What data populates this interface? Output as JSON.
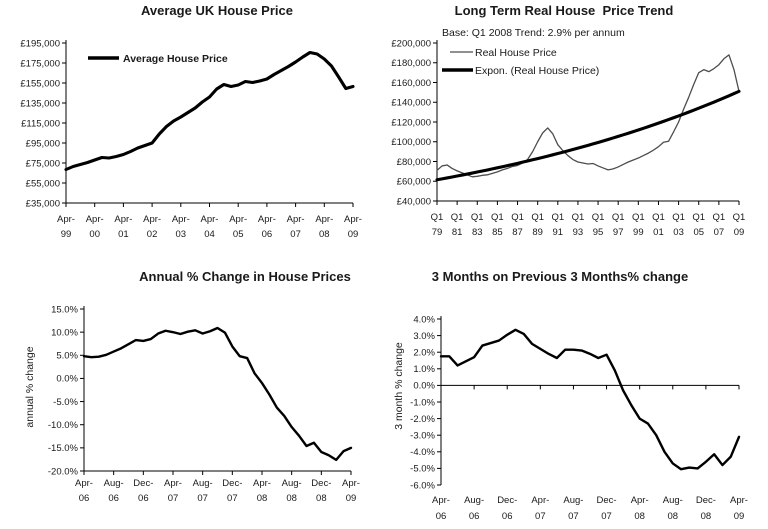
{
  "page": {
    "background": "#ffffff",
    "text_color": "#1a1a1a",
    "axis_color": "#000000"
  },
  "chart_data": [
    {
      "id": "average-uk-house-price",
      "type": "line",
      "title": "Average UK House Price",
      "y_min": 35000,
      "y_max": 195000,
      "y_tick_labels": [
        "£195,000",
        "£175,000",
        "£155,000",
        "£135,000",
        "£115,000",
        "£95,000",
        "£75,000",
        "£55,000",
        "£35,000"
      ],
      "x_tick_labels": [
        [
          "Apr-",
          "99"
        ],
        [
          "Apr-",
          "00"
        ],
        [
          "Apr-",
          "01"
        ],
        [
          "Apr-",
          "02"
        ],
        [
          "Apr-",
          "03"
        ],
        [
          "Apr-",
          "04"
        ],
        [
          "Apr-",
          "05"
        ],
        [
          "Apr-",
          "06"
        ],
        [
          "Apr-",
          "07"
        ],
        [
          "Apr-",
          "08"
        ],
        [
          "Apr-",
          "09"
        ]
      ],
      "legend": [
        {
          "label": "Average House Price",
          "style": "thick",
          "color": "#000000"
        }
      ],
      "series": [
        {
          "name": "Average House Price",
          "color": "#000000",
          "width": 3.1,
          "values": [
            68500,
            71500,
            73500,
            75500,
            78000,
            80500,
            80000,
            81500,
            83500,
            86500,
            90000,
            92500,
            95000,
            104000,
            111500,
            117000,
            121000,
            125500,
            130000,
            136000,
            141000,
            149000,
            153500,
            151500,
            153000,
            156500,
            155500,
            157000,
            159000,
            163500,
            167500,
            171500,
            176000,
            181000,
            185500,
            184000,
            179000,
            172000,
            161000,
            149500,
            151500
          ]
        }
      ]
    },
    {
      "id": "long-term-real-house-price-trend",
      "type": "line",
      "title": "Long Term Real House  Price Trend",
      "annotation": "Base: Q1 2008 Trend: 2.9% per annum",
      "y_min": 40000,
      "y_max": 200000,
      "y_tick_labels": [
        "£200,000",
        "£180,000",
        "£160,000",
        "£140,000",
        "£120,000",
        "£100,000",
        "£80,000",
        "£60,000",
        "£40,000"
      ],
      "x_tick_labels": [
        [
          "Q1",
          "79"
        ],
        [
          "Q1",
          "81"
        ],
        [
          "Q1",
          "83"
        ],
        [
          "Q1",
          "85"
        ],
        [
          "Q1",
          "87"
        ],
        [
          "Q1",
          "89"
        ],
        [
          "Q1",
          "91"
        ],
        [
          "Q1",
          "93"
        ],
        [
          "Q1",
          "95"
        ],
        [
          "Q1",
          "97"
        ],
        [
          "Q1",
          "99"
        ],
        [
          "Q1",
          "01"
        ],
        [
          "Q1",
          "03"
        ],
        [
          "Q1",
          "05"
        ],
        [
          "Q1",
          "07"
        ],
        [
          "Q1",
          "09"
        ]
      ],
      "legend": [
        {
          "label": "Real House Price",
          "style": "thin",
          "color": "#4d4d4d"
        },
        {
          "label": "Expon. (Real House Price)",
          "style": "thick",
          "color": "#000000"
        }
      ],
      "series": [
        {
          "name": "Real House Price",
          "color": "#4d4d4d",
          "width": 1.3,
          "values": [
            71000,
            75500,
            76500,
            73000,
            70500,
            68500,
            66500,
            64500,
            65000,
            66000,
            66500,
            68000,
            69500,
            71500,
            73000,
            75000,
            76000,
            78500,
            82000,
            90000,
            100000,
            109000,
            114000,
            108000,
            97000,
            91000,
            86000,
            82000,
            79500,
            78500,
            77500,
            78000,
            75500,
            73500,
            71500,
            72500,
            74500,
            77000,
            79500,
            81500,
            83500,
            86000,
            88500,
            91500,
            95000,
            99500,
            100500,
            110000,
            120000,
            133000,
            145000,
            158000,
            170000,
            173000,
            171000,
            174000,
            178000,
            184000,
            188000,
            173000,
            151000
          ]
        },
        {
          "name": "Expon. (Real House Price)",
          "color": "#000000",
          "width": 3.1,
          "generator": {
            "type": "exponential",
            "start": 61500,
            "end": 151000,
            "points": 61
          }
        }
      ]
    },
    {
      "id": "annual-pct-change-in-house-prices",
      "type": "line",
      "title": "Annual % Change in House Prices",
      "y_axis_title": "annual % change",
      "y_min": -20,
      "y_max": 15,
      "y_tick_labels": [
        "15.0%",
        "10.0%",
        "5.0%",
        "0.0%",
        "-5.0%",
        "-10.0%",
        "-15.0%",
        "-20.0%"
      ],
      "x_tick_labels": [
        [
          "Apr-",
          "06"
        ],
        [
          "Aug-",
          "06"
        ],
        [
          "Dec-",
          "06"
        ],
        [
          "Apr-",
          "07"
        ],
        [
          "Aug-",
          "07"
        ],
        [
          "Dec-",
          "07"
        ],
        [
          "Apr-",
          "08"
        ],
        [
          "Aug-",
          "08"
        ],
        [
          "Dec-",
          "08"
        ],
        [
          "Apr-",
          "09"
        ]
      ],
      "series": [
        {
          "name": "annual % change",
          "color": "#000000",
          "width": 2.4,
          "values": [
            4.8,
            4.6,
            4.7,
            5.1,
            5.8,
            6.5,
            7.4,
            8.3,
            8.1,
            8.5,
            9.7,
            10.3,
            10.0,
            9.6,
            10.1,
            10.4,
            9.7,
            10.2,
            10.9,
            9.9,
            6.9,
            4.8,
            4.4,
            1.1,
            -1.0,
            -3.5,
            -6.3,
            -8.1,
            -10.5,
            -12.4,
            -14.6,
            -13.9,
            -15.9,
            -16.6,
            -17.6,
            -15.7,
            -15.0
          ]
        }
      ]
    },
    {
      "id": "three-months-on-previous-three-months",
      "type": "line",
      "title": "3 Months on Previous 3 Months% change",
      "y_axis_title": "3 month % change",
      "y_min": -6,
      "y_max": 4,
      "x_axis_at": 0,
      "y_tick_labels": [
        "4.0%",
        "3.0%",
        "2.0%",
        "1.0%",
        "0.0%",
        "-1.0%",
        "-2.0%",
        "-3.0%",
        "-4.0%",
        "-5.0%",
        "-6.0%"
      ],
      "x_tick_labels": [
        [
          "Apr-",
          "06"
        ],
        [
          "Aug-",
          "06"
        ],
        [
          "Dec-",
          "06"
        ],
        [
          "Apr-",
          "07"
        ],
        [
          "Aug-",
          "07"
        ],
        [
          "Dec-",
          "07"
        ],
        [
          "Apr-",
          "08"
        ],
        [
          "Aug-",
          "08"
        ],
        [
          "Dec-",
          "08"
        ],
        [
          "Apr-",
          "09"
        ]
      ],
      "series": [
        {
          "name": "3 month % change",
          "color": "#000000",
          "width": 2.4,
          "values": [
            1.75,
            1.75,
            1.2,
            1.45,
            1.7,
            2.4,
            2.55,
            2.7,
            3.05,
            3.35,
            3.1,
            2.5,
            2.2,
            1.9,
            1.65,
            2.15,
            2.15,
            2.1,
            1.9,
            1.65,
            1.85,
            0.9,
            -0.3,
            -1.2,
            -2.0,
            -2.3,
            -3.0,
            -4.0,
            -4.7,
            -5.05,
            -4.95,
            -5.0,
            -4.6,
            -4.15,
            -4.8,
            -4.3,
            -3.1
          ]
        }
      ]
    }
  ]
}
